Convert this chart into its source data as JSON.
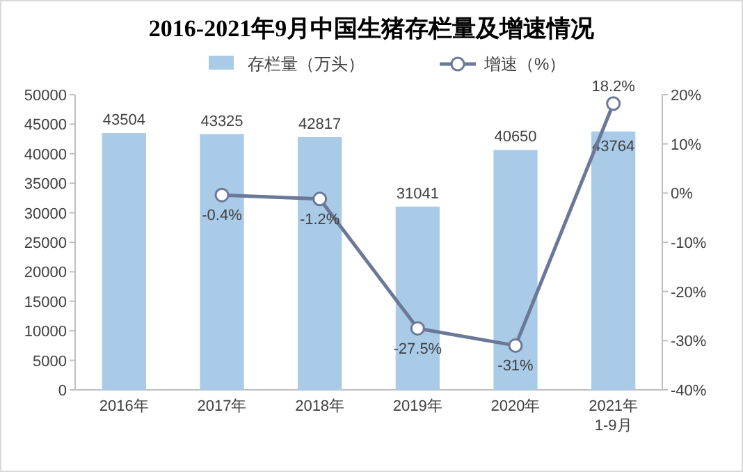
{
  "chart_data": {
    "type": "bar",
    "title": "2016-2021年9月中国生猪存栏量及增速情况",
    "categories": [
      "2016年",
      "2017年",
      "2018年",
      "2019年",
      "2020年",
      "2021年\n1-9月"
    ],
    "series": [
      {
        "name": "存栏量（万头）",
        "color": "#a9cbe8",
        "values": [
          43504,
          43325,
          42817,
          31041,
          40650,
          43764
        ],
        "value_labels": [
          "43504",
          "43325",
          "42817",
          "31041",
          "40650",
          "43764"
        ]
      },
      {
        "name": "增速（%）",
        "type": "line",
        "axis": "y2",
        "color": "#6b7898",
        "marker": "circle",
        "line_style": "solid",
        "values": [
          null,
          -0.4,
          -1.2,
          -27.5,
          -31,
          18.2
        ],
        "value_labels": [
          null,
          "-0.4%",
          "-1.2%",
          "-27.5%",
          "-31%",
          "18.2%"
        ]
      }
    ],
    "ylim": [
      0,
      50000
    ],
    "yticks": [
      0,
      5000,
      10000,
      15000,
      20000,
      25000,
      30000,
      35000,
      40000,
      45000,
      50000
    ],
    "y2lim": [
      -40,
      20
    ],
    "y2ticks": [
      {
        "value": -40,
        "label": "-40%"
      },
      {
        "value": -30,
        "label": "-30%"
      },
      {
        "value": -20,
        "label": "-20%"
      },
      {
        "value": -10,
        "label": "-10%"
      },
      {
        "value": 0,
        "label": "0%"
      },
      {
        "value": 10,
        "label": "10%"
      },
      {
        "value": 20,
        "label": "20%"
      }
    ],
    "legend": "top"
  }
}
